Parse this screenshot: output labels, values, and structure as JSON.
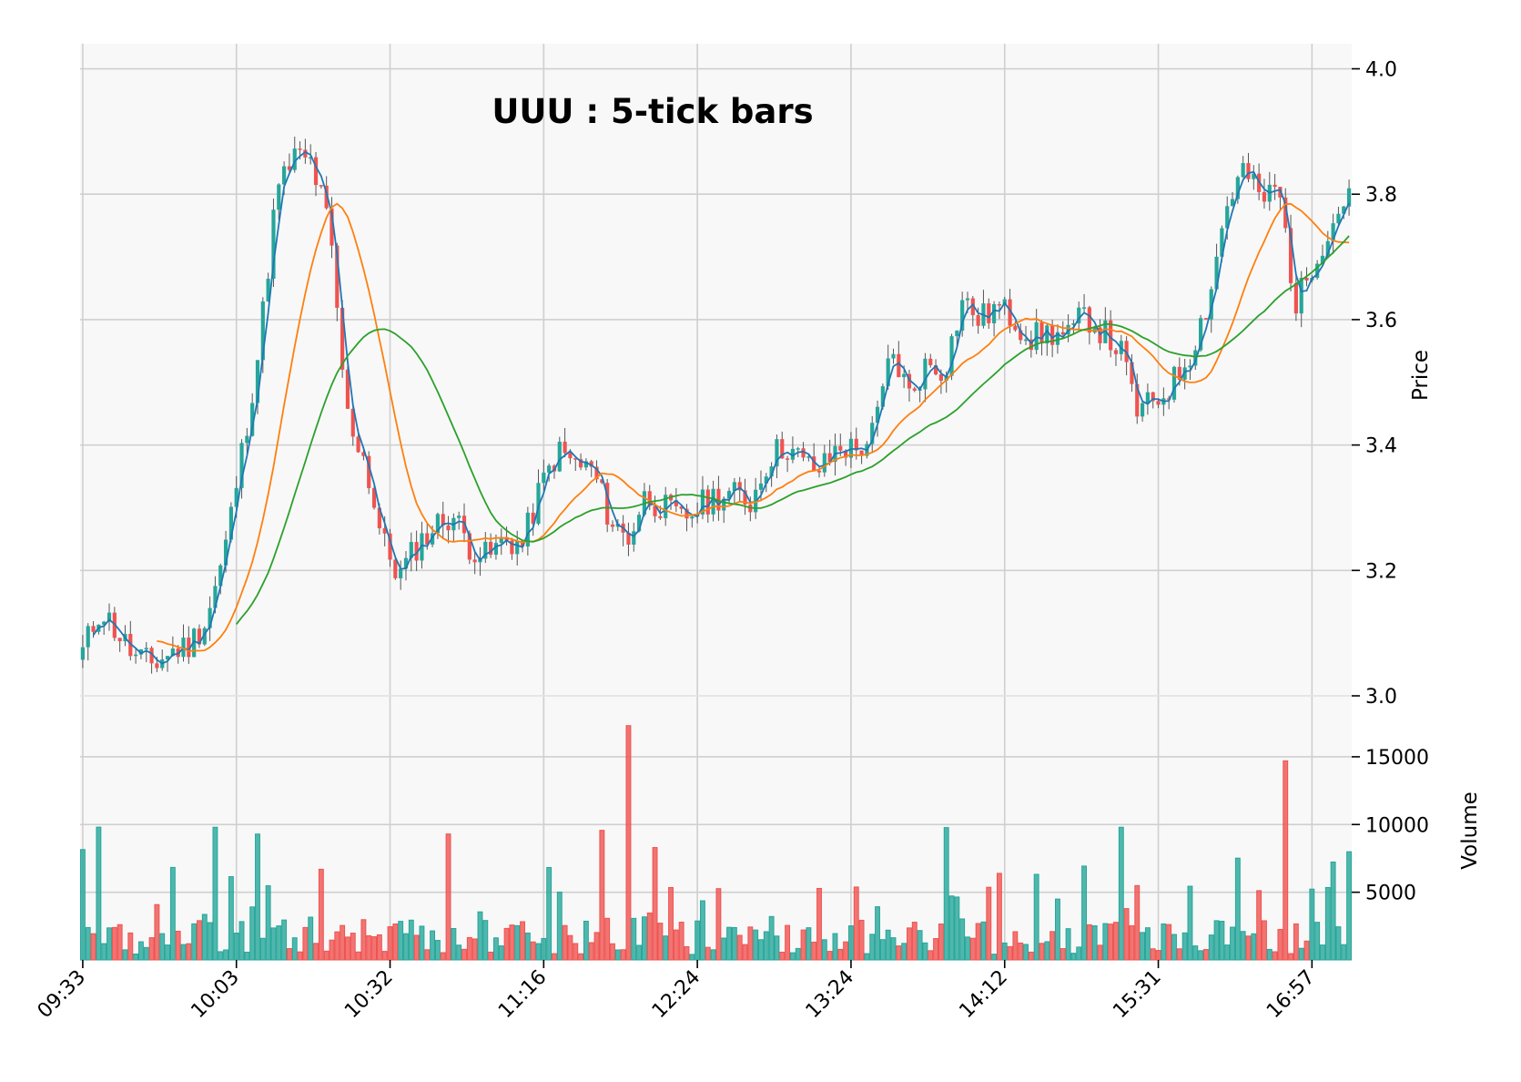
{
  "chart_data": {
    "type": "candlestick",
    "title": "UUU : 5-tick bars",
    "ylabel": "Price",
    "ylabel_lower": "Volume",
    "price_ylim": [
      3.0,
      4.04
    ],
    "volume_ylim": [
      0,
      19500
    ],
    "price_ticks": [
      "3.0",
      "3.2",
      "3.4",
      "3.6",
      "3.8",
      "4.0"
    ],
    "volume_ticks": [
      "5000",
      "10000",
      "15000"
    ],
    "x_tick_labels": [
      "09:33",
      "10:03",
      "10:32",
      "11:16",
      "12:24",
      "13:24",
      "14:12",
      "15:31",
      "16:57"
    ],
    "up_color": "#26a69a",
    "down_color": "#ef5350",
    "ma_colors": [
      "#1f77b4",
      "#ff7f0e",
      "#2ca02c"
    ],
    "ma_periods": [
      3,
      15,
      30
    ],
    "anchors_close": [
      3.07,
      3.14,
      3.1,
      3.06,
      3.05,
      3.07,
      3.08,
      3.12,
      3.22,
      3.38,
      3.55,
      3.8,
      3.86,
      3.85,
      3.75,
      3.45,
      3.38,
      3.25,
      3.19,
      3.24,
      3.27,
      3.29,
      3.24,
      3.22,
      3.25,
      3.24,
      3.33,
      3.39,
      3.37,
      3.36,
      3.28,
      3.25,
      3.32,
      3.3,
      3.28,
      3.3,
      3.32,
      3.32,
      3.31,
      3.38,
      3.4,
      3.37,
      3.36,
      3.4,
      3.39,
      3.42,
      3.55,
      3.48,
      3.53,
      3.52,
      3.63,
      3.6,
      3.62,
      3.6,
      3.57,
      3.58,
      3.57,
      3.61,
      3.58,
      3.55,
      3.45,
      3.47,
      3.5,
      3.55,
      3.63,
      3.78,
      3.84,
      3.79,
      3.81,
      3.62,
      3.7,
      3.75,
      3.81
    ]
  }
}
